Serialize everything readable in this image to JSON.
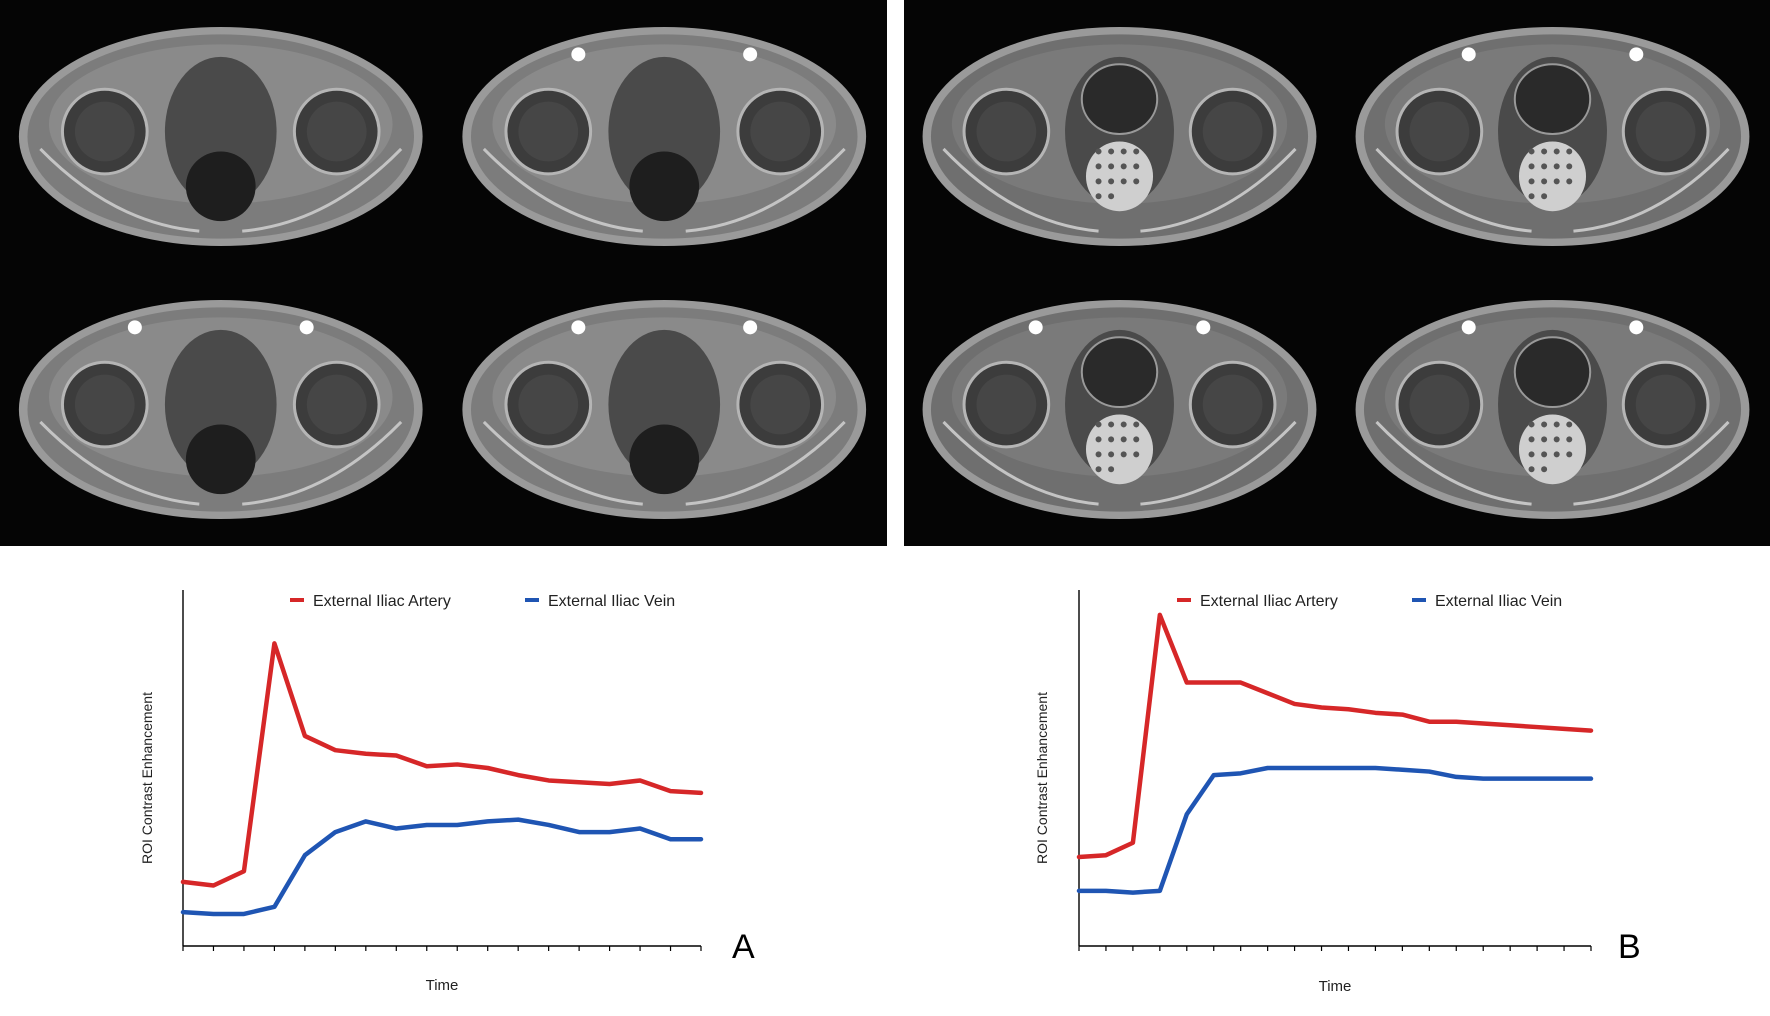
{
  "figure": {
    "panels": [
      {
        "id": "A",
        "letter": "A",
        "mri": {
          "grid": "2x2",
          "tone": "noisy-grayscale",
          "enhancing_vessels": [
            false,
            true,
            true,
            true
          ]
        }
      },
      {
        "id": "B",
        "letter": "B",
        "mri": {
          "grid": "2x2",
          "tone": "smooth-grayscale",
          "enhancing_vessels": [
            false,
            true,
            true,
            true
          ]
        }
      }
    ]
  },
  "chart_data": [
    {
      "type": "line",
      "title": "",
      "xlabel": "Time",
      "ylabel": "ROI Contrast Enhancement",
      "x": [
        0,
        1,
        2,
        3,
        4,
        5,
        6,
        7,
        8,
        9,
        10,
        11,
        12,
        13,
        14,
        15,
        16,
        17
      ],
      "xlim": [
        0,
        17
      ],
      "ylim": [
        0,
        100
      ],
      "x_ticks": 18,
      "grid": false,
      "legend_position": "top",
      "series": [
        {
          "name": "External Iliac Artery",
          "color": "#d62728",
          "values": [
            18,
            17,
            21,
            85,
            59,
            55,
            54,
            53.5,
            50.5,
            51,
            50,
            48,
            46.5,
            46,
            45.5,
            46.5,
            43.5,
            43
          ]
        },
        {
          "name": "External Iliac Vein",
          "color": "#1f55b3",
          "values": [
            9.5,
            9,
            9,
            11,
            25.5,
            32,
            35,
            33,
            34,
            34,
            35,
            35.5,
            34,
            32,
            32,
            33,
            30,
            30
          ]
        }
      ]
    },
    {
      "type": "line",
      "title": "",
      "xlabel": "Time",
      "ylabel": "ROI Contrast Enhancement",
      "x": [
        0,
        1,
        2,
        3,
        4,
        5,
        6,
        7,
        8,
        9,
        10,
        11,
        12,
        13,
        14,
        15,
        16,
        17,
        18,
        19
      ],
      "xlim": [
        0,
        19
      ],
      "ylim": [
        0,
        100
      ],
      "x_ticks": 20,
      "grid": false,
      "legend_position": "top",
      "series": [
        {
          "name": "External Iliac Artery",
          "color": "#d62728",
          "values": [
            25,
            25.5,
            29,
            93,
            74,
            74,
            74,
            71,
            68,
            67,
            66.5,
            65.5,
            65,
            63,
            63,
            62.5,
            62,
            61.5,
            61,
            60.5
          ]
        },
        {
          "name": "External Iliac Vein",
          "color": "#1f55b3",
          "values": [
            15.5,
            15.5,
            15,
            15.5,
            37,
            48,
            48.5,
            50,
            50,
            50,
            50,
            50,
            49.5,
            49,
            47.5,
            47,
            47,
            47,
            47,
            47
          ]
        }
      ]
    }
  ]
}
